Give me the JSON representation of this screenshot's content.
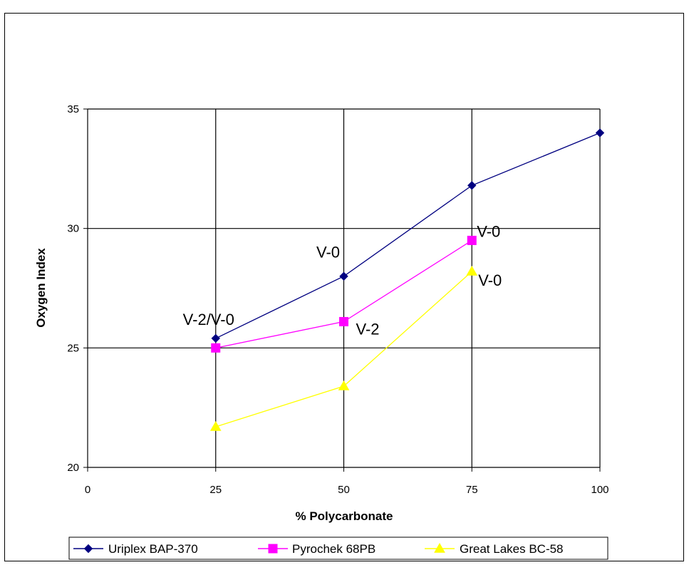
{
  "chart_data": {
    "type": "line",
    "title": "",
    "xlabel": "% Polycarbonate",
    "ylabel": "Oxygen Index",
    "xlim": [
      0,
      100
    ],
    "ylim": [
      20,
      35
    ],
    "x_ticks": [
      0,
      25,
      50,
      75,
      100
    ],
    "y_ticks": [
      20,
      25,
      30,
      35
    ],
    "x_tick_labels": [
      "0",
      "25",
      "50",
      "75",
      "100"
    ],
    "y_tick_labels": [
      "20",
      "25",
      "30",
      "35"
    ],
    "grid": true,
    "legend_position": "bottom",
    "series": [
      {
        "name": "Uriplex BAP-370",
        "color": "#000080",
        "marker": "diamond",
        "x": [
          25,
          50,
          75,
          100
        ],
        "y": [
          25.4,
          28.0,
          31.8,
          34.0
        ]
      },
      {
        "name": "Pyrochek 68PB",
        "color": "#ff00ff",
        "marker": "square",
        "x": [
          25,
          50,
          75
        ],
        "y": [
          25.0,
          26.1,
          29.5
        ]
      },
      {
        "name": "Great Lakes BC-58",
        "color": "#ffff00",
        "marker": "triangle",
        "x": [
          25,
          50,
          75
        ],
        "y": [
          21.7,
          23.4,
          28.2
        ]
      }
    ],
    "annotations": [
      {
        "text": "V-2/V-0",
        "x": 25,
        "y": 25.4
      },
      {
        "text": "V-0",
        "x": 50,
        "y": 28.0
      },
      {
        "text": "V-2",
        "x": 50,
        "y": 26.1
      },
      {
        "text": "V-0",
        "x": 75,
        "y": 29.5
      },
      {
        "text": "V-0",
        "x": 75,
        "y": 28.2
      }
    ]
  }
}
